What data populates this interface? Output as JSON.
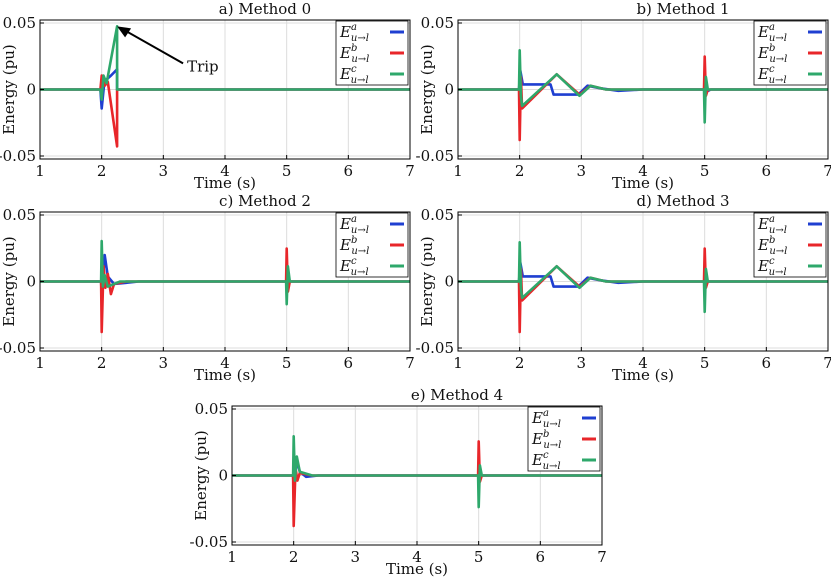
{
  "chart_data": [
    {
      "type": "line",
      "title": "a) Method 0",
      "xlabel": "Time (s)",
      "ylabel": "Energy (pu)",
      "xlim": [
        1,
        7
      ],
      "ylim": [
        -0.055,
        0.055
      ],
      "xticks": [
        "1",
        "2",
        "3",
        "4",
        "5",
        "6",
        "7"
      ],
      "yticks": [
        "0.05",
        "0",
        "-0.05"
      ],
      "grid": true,
      "legend_position": "top-right",
      "annotation": {
        "text": "Trip",
        "arrow_target": {
          "x": 2.25,
          "y": 0.05
        }
      },
      "series": [
        {
          "name": "E^a_{u→l}",
          "color": "#1f3fd1",
          "points": [
            [
              1,
              0
            ],
            [
              1.98,
              0
            ],
            [
              2.0,
              -0.015
            ],
            [
              2.04,
              0.004
            ],
            [
              2.08,
              0.008
            ],
            [
              2.15,
              0.011
            ],
            [
              2.25,
              0.016
            ],
            [
              2.25,
              0
            ],
            [
              7,
              0
            ]
          ]
        },
        {
          "name": "E^b_{u→l}",
          "color": "#e8262a",
          "points": [
            [
              1,
              0
            ],
            [
              1.98,
              0
            ],
            [
              2.0,
              0.011
            ],
            [
              2.05,
              0.003
            ],
            [
              2.1,
              0.006
            ],
            [
              2.25,
              -0.045
            ],
            [
              2.25,
              0
            ],
            [
              7,
              0
            ]
          ]
        },
        {
          "name": "E^c_{u→l}",
          "color": "#2ea86b",
          "points": [
            [
              1,
              0
            ],
            [
              1.98,
              0
            ],
            [
              2.0,
              -0.008
            ],
            [
              2.03,
              0.011
            ],
            [
              2.08,
              0.005
            ],
            [
              2.25,
              0.05
            ],
            [
              2.25,
              0
            ],
            [
              7,
              0
            ]
          ]
        }
      ]
    },
    {
      "type": "line",
      "title": "b) Method 1",
      "xlabel": "Time (s)",
      "ylabel": "Energy (pu)",
      "xlim": [
        1,
        7
      ],
      "ylim": [
        -0.055,
        0.055
      ],
      "xticks": [
        "1",
        "2",
        "3",
        "4",
        "5",
        "6",
        "7"
      ],
      "yticks": [
        "0.05",
        "0",
        "-0.05"
      ],
      "grid": true,
      "legend_position": "top-right",
      "series": [
        {
          "name": "E^a_{u→l}",
          "color": "#1f3fd1",
          "points": [
            [
              1,
              0
            ],
            [
              1.99,
              0
            ],
            [
              2.01,
              0.015
            ],
            [
              2.05,
              0.004
            ],
            [
              2.5,
              0.004
            ],
            [
              2.55,
              -0.004
            ],
            [
              2.8,
              -0.004
            ],
            [
              2.95,
              -0.004
            ],
            [
              3.1,
              0.003
            ],
            [
              3.3,
              0.001
            ],
            [
              3.6,
              -0.001
            ],
            [
              4.0,
              0
            ],
            [
              4.99,
              0
            ],
            [
              5.0,
              0.004
            ],
            [
              5.02,
              -0.002
            ],
            [
              5.1,
              0
            ],
            [
              7,
              0
            ]
          ]
        },
        {
          "name": "E^b_{u→l}",
          "color": "#e8262a",
          "points": [
            [
              1,
              0
            ],
            [
              1.99,
              0
            ],
            [
              2.0,
              -0.04
            ],
            [
              2.02,
              0.01
            ],
            [
              2.04,
              -0.015
            ],
            [
              2.6,
              0.012
            ],
            [
              2.97,
              -0.004
            ],
            [
              3.15,
              0.003
            ],
            [
              3.4,
              0
            ],
            [
              4.99,
              0
            ],
            [
              5.0,
              0.026
            ],
            [
              5.02,
              -0.005
            ],
            [
              5.05,
              0
            ],
            [
              7,
              0
            ]
          ]
        },
        {
          "name": "E^c_{u→l}",
          "color": "#2ea86b",
          "points": [
            [
              1,
              0
            ],
            [
              1.99,
              0
            ],
            [
              2.0,
              0.031
            ],
            [
              2.02,
              -0.005
            ],
            [
              2.04,
              -0.013
            ],
            [
              2.6,
              0.012
            ],
            [
              2.97,
              -0.005
            ],
            [
              3.15,
              0.003
            ],
            [
              3.4,
              0
            ],
            [
              4.99,
              0
            ],
            [
              5.0,
              -0.026
            ],
            [
              5.02,
              0.01
            ],
            [
              5.05,
              0
            ],
            [
              7,
              0
            ]
          ]
        }
      ]
    },
    {
      "type": "line",
      "title": "c) Method 2",
      "xlabel": "Time (s)",
      "ylabel": "Energy (pu)",
      "xlim": [
        1,
        7
      ],
      "ylim": [
        -0.055,
        0.055
      ],
      "xticks": [
        "1",
        "2",
        "3",
        "4",
        "5",
        "6",
        "7"
      ],
      "yticks": [
        "0.05",
        "0",
        "-0.05"
      ],
      "grid": true,
      "legend_position": "top-right",
      "series": [
        {
          "name": "E^a_{u→l}",
          "color": "#1f3fd1",
          "points": [
            [
              1,
              0
            ],
            [
              1.99,
              0
            ],
            [
              2.0,
              -0.012
            ],
            [
              2.05,
              0.021
            ],
            [
              2.1,
              0.004
            ],
            [
              2.2,
              -0.002
            ],
            [
              2.4,
              -0.001
            ],
            [
              2.6,
              0
            ],
            [
              7,
              0
            ]
          ]
        },
        {
          "name": "E^b_{u→l}",
          "color": "#e8262a",
          "points": [
            [
              1,
              0
            ],
            [
              1.99,
              0
            ],
            [
              2.0,
              -0.04
            ],
            [
              2.03,
              0.012
            ],
            [
              2.06,
              -0.005
            ],
            [
              2.1,
              0.006
            ],
            [
              2.15,
              -0.01
            ],
            [
              2.2,
              -0.002
            ],
            [
              2.4,
              0
            ],
            [
              4.99,
              0
            ],
            [
              5.0,
              0.026
            ],
            [
              5.02,
              -0.008
            ],
            [
              5.05,
              0
            ],
            [
              7,
              0
            ]
          ]
        },
        {
          "name": "E^c_{u→l}",
          "color": "#2ea86b",
          "points": [
            [
              1,
              0
            ],
            [
              1.99,
              0
            ],
            [
              2.0,
              0.032
            ],
            [
              2.02,
              -0.004
            ],
            [
              2.05,
              0.005
            ],
            [
              2.1,
              -0.004
            ],
            [
              2.3,
              0
            ],
            [
              4.99,
              0
            ],
            [
              5.0,
              -0.018
            ],
            [
              5.02,
              0.012
            ],
            [
              5.05,
              0
            ],
            [
              7,
              0
            ]
          ]
        }
      ]
    },
    {
      "type": "line",
      "title": "d) Method 3",
      "xlabel": "Time (s)",
      "ylabel": "Energy (pu)",
      "xlim": [
        1,
        7
      ],
      "ylim": [
        -0.055,
        0.055
      ],
      "xticks": [
        "1",
        "2",
        "3",
        "4",
        "5",
        "6",
        "7"
      ],
      "yticks": [
        "0.05",
        "0",
        "-0.05"
      ],
      "grid": true,
      "legend_position": "top-right",
      "series": [
        {
          "name": "E^a_{u→l}",
          "color": "#1f3fd1",
          "points": [
            [
              1,
              0
            ],
            [
              1.99,
              0
            ],
            [
              2.01,
              0.015
            ],
            [
              2.05,
              0.004
            ],
            [
              2.5,
              0.004
            ],
            [
              2.55,
              -0.004
            ],
            [
              2.8,
              -0.004
            ],
            [
              2.95,
              -0.004
            ],
            [
              3.1,
              0.003
            ],
            [
              3.3,
              0.001
            ],
            [
              3.6,
              -0.001
            ],
            [
              4.0,
              0
            ],
            [
              7,
              0
            ]
          ]
        },
        {
          "name": "E^b_{u→l}",
          "color": "#e8262a",
          "points": [
            [
              1,
              0
            ],
            [
              1.99,
              0
            ],
            [
              2.0,
              -0.04
            ],
            [
              2.02,
              0.01
            ],
            [
              2.04,
              -0.015
            ],
            [
              2.6,
              0.012
            ],
            [
              2.97,
              -0.004
            ],
            [
              3.15,
              0.003
            ],
            [
              3.4,
              0
            ],
            [
              4.99,
              0
            ],
            [
              5.0,
              0.026
            ],
            [
              5.02,
              -0.005
            ],
            [
              5.05,
              0
            ],
            [
              7,
              0
            ]
          ]
        },
        {
          "name": "E^c_{u→l}",
          "color": "#2ea86b",
          "points": [
            [
              1,
              0
            ],
            [
              1.99,
              0
            ],
            [
              2.0,
              0.031
            ],
            [
              2.02,
              -0.005
            ],
            [
              2.04,
              -0.013
            ],
            [
              2.6,
              0.012
            ],
            [
              2.97,
              -0.005
            ],
            [
              3.15,
              0.003
            ],
            [
              3.4,
              0
            ],
            [
              4.99,
              0
            ],
            [
              5.0,
              -0.024
            ],
            [
              5.02,
              0.01
            ],
            [
              5.05,
              0
            ],
            [
              7,
              0
            ]
          ]
        }
      ]
    },
    {
      "type": "line",
      "title": "e) Method 4",
      "xlabel": "Time (s)",
      "ylabel": "Energy (pu)",
      "xlim": [
        1,
        7
      ],
      "ylim": [
        -0.055,
        0.055
      ],
      "xticks": [
        "1",
        "2",
        "3",
        "4",
        "5",
        "6",
        "7"
      ],
      "yticks": [
        "0.05",
        "0",
        "-0.05"
      ],
      "grid": true,
      "legend_position": "top-right",
      "series": [
        {
          "name": "E^a_{u→l}",
          "color": "#1f3fd1",
          "points": [
            [
              1,
              0
            ],
            [
              1.99,
              0
            ],
            [
              2.0,
              -0.01
            ],
            [
              2.05,
              0.012
            ],
            [
              2.1,
              0.003
            ],
            [
              2.2,
              -0.001
            ],
            [
              2.4,
              0
            ],
            [
              7,
              0
            ]
          ]
        },
        {
          "name": "E^b_{u→l}",
          "color": "#e8262a",
          "points": [
            [
              1,
              0
            ],
            [
              1.99,
              0
            ],
            [
              2.0,
              -0.04
            ],
            [
              2.03,
              0.006
            ],
            [
              2.06,
              -0.004
            ],
            [
              2.1,
              0.002
            ],
            [
              2.3,
              0
            ],
            [
              4.99,
              0
            ],
            [
              5.0,
              0.027
            ],
            [
              5.02,
              -0.005
            ],
            [
              5.05,
              0
            ],
            [
              7,
              0
            ]
          ]
        },
        {
          "name": "E^c_{u→l}",
          "color": "#2ea86b",
          "points": [
            [
              1,
              0
            ],
            [
              1.99,
              0
            ],
            [
              2.0,
              0.031
            ],
            [
              2.02,
              -0.004
            ],
            [
              2.05,
              0.015
            ],
            [
              2.1,
              0.003
            ],
            [
              2.3,
              0
            ],
            [
              4.99,
              0
            ],
            [
              5.0,
              -0.025
            ],
            [
              5.02,
              0.008
            ],
            [
              5.05,
              0
            ],
            [
              7,
              0
            ]
          ]
        }
      ]
    }
  ]
}
